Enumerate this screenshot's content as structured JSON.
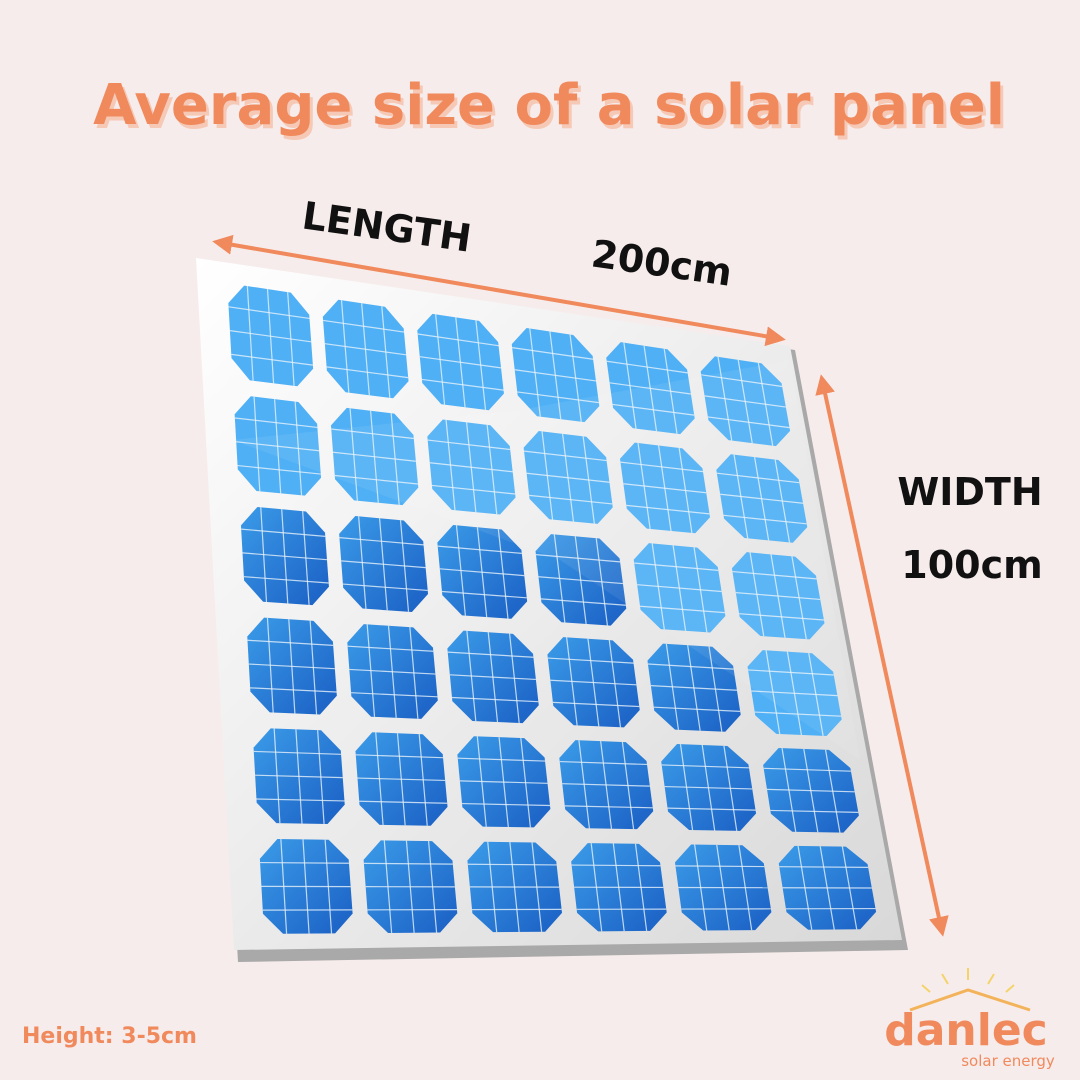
{
  "header": {
    "title": "Average size of a solar panel"
  },
  "dimensions": {
    "length": {
      "label": "LENGTH",
      "value": "200cm"
    },
    "width": {
      "label": "WIDTH",
      "value": "100cm"
    },
    "height": "Height: 3-5cm"
  },
  "logo": {
    "name": "danlec",
    "tagline": "solar energy"
  }
}
